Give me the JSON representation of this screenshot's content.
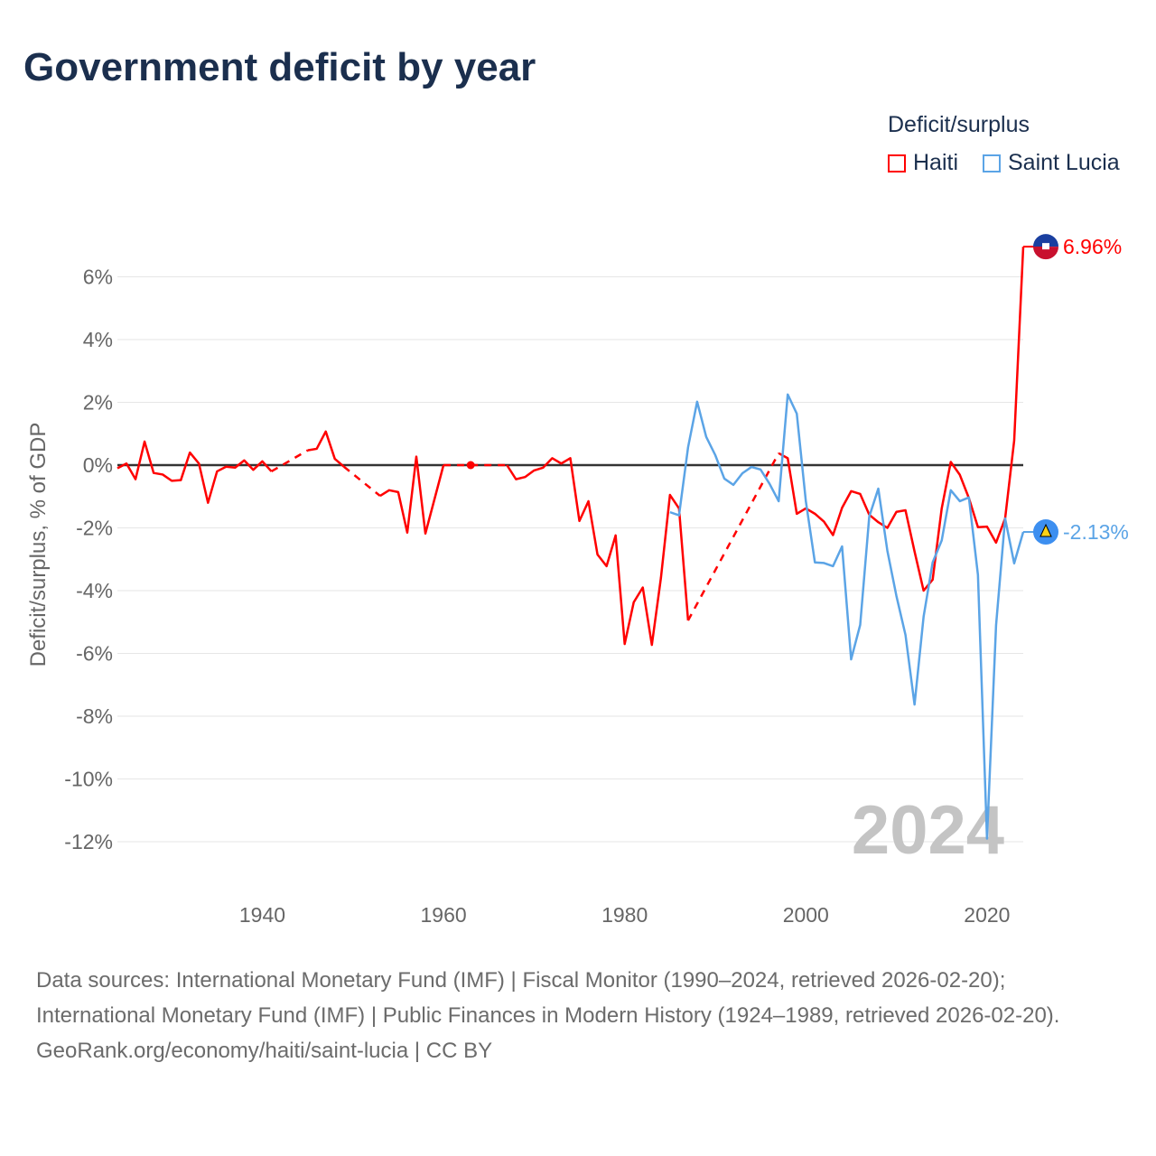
{
  "chart_data": {
    "type": "line",
    "title": "Government deficit by year",
    "ylabel": "Deficit/surplus, % of GDP",
    "xlabel": "",
    "xlim": [
      1924,
      2024
    ],
    "ylim": [
      -13.2,
      7.5
    ],
    "x_ticks": [
      1940,
      1960,
      1980,
      2000,
      2020
    ],
    "y_ticks": [
      6,
      4,
      2,
      0,
      -2,
      -4,
      -6,
      -8,
      -10,
      -12
    ],
    "y_tick_labels": [
      "6%",
      "4%",
      "2%",
      "0%",
      "-2%",
      "-4%",
      "-6%",
      "-8%",
      "-10%",
      "-12%"
    ],
    "legend_title": "Deficit/surplus",
    "legend_position": "top-right",
    "current_year_label": "2024",
    "series": [
      {
        "name": "Haiti",
        "color": "#ff0000",
        "end_label": "6.96%",
        "start_year": 1924,
        "values": [
          -0.1,
          0.05,
          -0.45,
          0.75,
          -0.25,
          -0.3,
          -0.5,
          -0.48,
          0.4,
          0.05,
          -1.2,
          -0.2,
          -0.05,
          -0.08,
          0.15,
          -0.15,
          0.12,
          -0.2,
          null,
          null,
          null,
          0.47,
          0.52,
          1.07,
          0.2,
          -0.05,
          null,
          null,
          null,
          -0.98,
          -0.8,
          -0.86,
          -2.15,
          0.27,
          -2.18,
          -1.09,
          0.0,
          null,
          null,
          0.0,
          null,
          null,
          null,
          0.0,
          -0.45,
          -0.38,
          -0.17,
          -0.08,
          0.22,
          0.05,
          0.22,
          -1.78,
          -1.15,
          -2.85,
          -3.22,
          -2.24,
          -5.7,
          -4.37,
          -3.9,
          -5.73,
          -3.6,
          -0.95,
          -1.38,
          -4.95,
          null,
          null,
          null,
          null,
          null,
          null,
          null,
          null,
          null,
          0.38,
          0.22,
          -1.55,
          -1.38,
          -1.55,
          -1.8,
          -2.23,
          -1.36,
          -0.83,
          -0.92,
          -1.58,
          -1.82,
          -2.0,
          -1.49,
          -1.44,
          -2.75,
          -4.0,
          -3.65,
          -1.38,
          0.1,
          -0.31,
          -1.05,
          -1.98,
          -1.96,
          -2.47,
          -1.7,
          0.78,
          6.96
        ]
      },
      {
        "name": "Saint Lucia",
        "color": "#5ba4e6",
        "end_label": "-2.13%",
        "start_year": 1985,
        "values": [
          -1.5,
          -1.6,
          0.57,
          2.02,
          0.9,
          0.32,
          -0.43,
          -0.63,
          -0.26,
          -0.06,
          -0.14,
          -0.6,
          -1.15,
          2.25,
          1.64,
          -1.15,
          -3.1,
          -3.12,
          -3.22,
          -2.59,
          -6.19,
          -5.09,
          -1.64,
          -0.75,
          -2.73,
          -4.17,
          -5.41,
          -7.63,
          -4.83,
          -3.1,
          -2.4,
          -0.8,
          -1.15,
          -1.03,
          -3.5,
          -11.9,
          -5.1,
          -1.7,
          -3.13,
          -2.13
        ]
      }
    ]
  },
  "footer": {
    "line1": "Data sources: International Monetary Fund (IMF) | Fiscal Monitor (1990–2024, retrieved 2026-02-20);",
    "line2": "International Monetary Fund (IMF) | Public Finances in Modern History (1924–1989, retrieved 2026-02-20).",
    "line3": "GeoRank.org/economy/haiti/saint-lucia | CC BY"
  }
}
